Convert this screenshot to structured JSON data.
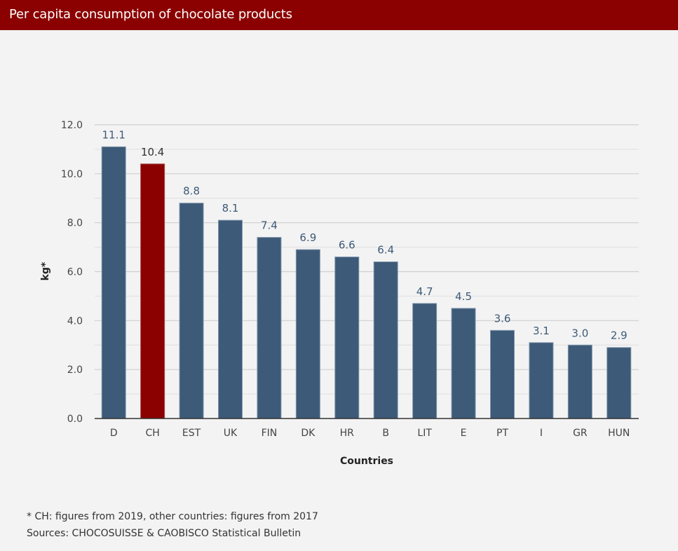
{
  "header": {
    "title": "Per capita consumption of chocolate products"
  },
  "colors": {
    "bar": "#3d5a78",
    "highlight": "#8b0000",
    "header": "#8b0000"
  },
  "chart_data": {
    "type": "bar",
    "title": "Per capita consumption of chocolate products",
    "xlabel": "Countries",
    "ylabel": "kg*",
    "ylim": [
      0,
      12
    ],
    "yticks": [
      "0.0",
      "2.0",
      "4.0",
      "6.0",
      "8.0",
      "10.0",
      "12.0"
    ],
    "grid": true,
    "categories": [
      "D",
      "CH",
      "EST",
      "UK",
      "FIN",
      "DK",
      "HR",
      "B",
      "LIT",
      "E",
      "PT",
      "I",
      "GR",
      "HUN"
    ],
    "values": [
      11.1,
      10.4,
      8.8,
      8.1,
      7.4,
      6.9,
      6.6,
      6.4,
      4.7,
      4.5,
      3.6,
      3.1,
      3.0,
      2.9
    ],
    "value_labels": [
      "11.1",
      "10.4",
      "8.8",
      "8.1",
      "7.4",
      "6.9",
      "6.6",
      "6.4",
      "4.7",
      "4.5",
      "3.6",
      "3.1",
      "3.0",
      "2.9"
    ],
    "highlight_category": "CH"
  },
  "footer": {
    "note": "* CH: figures from 2019, other countries: figures from 2017",
    "sources": "Sources: CHOCOSUISSE & CAOBISCO Statistical Bulletin"
  }
}
